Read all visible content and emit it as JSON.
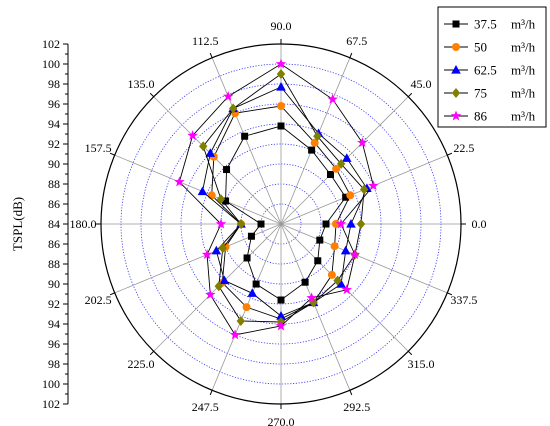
{
  "chart_data": {
    "type": "polar-line",
    "title": "",
    "ylabel": "TSPL(dB)",
    "radial_axis": {
      "min": 84,
      "max": 102,
      "major_step": 2,
      "tick_labels": [
        "84",
        "86",
        "88",
        "90",
        "92",
        "94",
        "96",
        "98",
        "100",
        "102"
      ],
      "grid": "dotted blue circles at each major tick"
    },
    "angular_axis": {
      "unit": "degrees",
      "zero_direction": "right",
      "direction": "counterclockwise",
      "tick_labels": [
        "0.0",
        "22.5",
        "45.0",
        "67.5",
        "90.0",
        "112.5",
        "135.0",
        "157.5",
        "180.0",
        "202.5",
        "225.0",
        "247.5",
        "270.0",
        "292.5",
        "315.0",
        "337.5"
      ]
    },
    "legend_position": "top-right",
    "angles": [
      0,
      22.5,
      45,
      67.5,
      90,
      112.5,
      135,
      157.5,
      180,
      202.5,
      225,
      247.5,
      270,
      292.5,
      315,
      337.5
    ],
    "series": [
      {
        "name": "37.5",
        "unit": "m³/h",
        "color": "#000000",
        "marker": "square",
        "values": [
          88.5,
          91.0,
          91.0,
          92.0,
          93.8,
          93.5,
          91.7,
          90.0,
          86.0,
          87.2,
          88.8,
          90.5,
          91.6,
          90.3,
          89.2,
          88.2
        ]
      },
      {
        "name": "50",
        "unit": "m³/h",
        "color": "#ff8000",
        "marker": "circle",
        "values": [
          89.5,
          91.5,
          91.8,
          92.8,
          95.8,
          96.0,
          93.5,
          91.5,
          88.0,
          90.0,
          92.3,
          93.0,
          93.5,
          92.5,
          91.2,
          89.8
        ]
      },
      {
        "name": "62.5",
        "unit": "m³/h",
        "color": "#0000ff",
        "marker": "triangle",
        "values": [
          91.0,
          93.3,
          93.3,
          93.8,
          97.7,
          96.5,
          94.0,
          92.5,
          88.0,
          91.0,
          92.0,
          91.5,
          93.2,
          92.5,
          92.5,
          91.0
        ]
      },
      {
        "name": "75",
        "unit": "m³/h",
        "color": "#808000",
        "marker": "diamond",
        "values": [
          92.0,
          93.0,
          92.5,
          93.5,
          99.0,
          96.5,
          95.0,
          90.5,
          88.0,
          90.3,
          92.8,
          94.5,
          93.8,
          92.5,
          92.0,
          92.0
        ]
      },
      {
        "name": "86",
        "unit": "m³/h",
        "color": "#ff00ff",
        "marker": "star",
        "values": [
          90.0,
          94.0,
          95.5,
          97.5,
          100.0,
          97.8,
          96.5,
          95.0,
          90.0,
          92.0,
          94.0,
          96.0,
          94.2,
          92.0,
          93.3,
          92.0
        ]
      }
    ]
  }
}
